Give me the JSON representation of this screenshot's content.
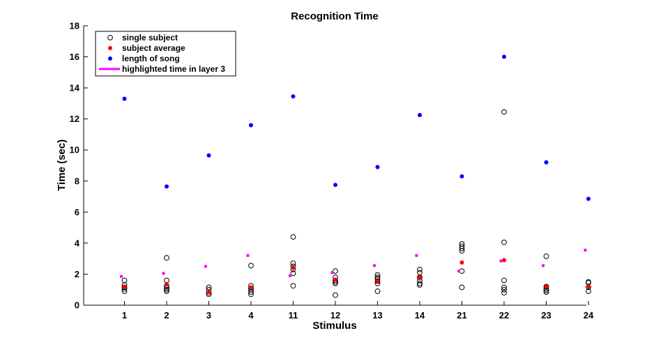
{
  "chart_data": {
    "type": "scatter",
    "title": "Recognition Time",
    "xlabel": "Stimulus",
    "ylabel": "Time (sec)",
    "categories": [
      "1",
      "2",
      "3",
      "4",
      "11",
      "12",
      "13",
      "14",
      "21",
      "22",
      "23",
      "24"
    ],
    "ylim": [
      0,
      18
    ],
    "yticks": [
      0,
      2,
      4,
      6,
      8,
      10,
      12,
      14,
      16,
      18
    ],
    "grid": false,
    "legend_position": "top-left",
    "series": [
      {
        "name": "single subject",
        "marker": "open-circle",
        "color": "#000000",
        "points": [
          {
            "x": "1",
            "y": [
              0.9,
              1.05,
              1.15,
              1.3,
              1.6
            ]
          },
          {
            "x": "2",
            "y": [
              0.9,
              1.0,
              1.1,
              1.25,
              1.6,
              3.05
            ]
          },
          {
            "x": "3",
            "y": [
              0.7,
              0.8,
              1.0,
              1.15
            ]
          },
          {
            "x": "4",
            "y": [
              0.7,
              0.85,
              1.0,
              1.1,
              1.25,
              2.55
            ]
          },
          {
            "x": "11",
            "y": [
              1.25,
              2.05,
              2.3,
              2.5,
              2.7,
              4.4
            ]
          },
          {
            "x": "12",
            "y": [
              0.65,
              1.4,
              1.5,
              1.6,
              1.8,
              2.2
            ]
          },
          {
            "x": "13",
            "y": [
              0.9,
              1.4,
              1.55,
              1.7,
              1.8,
              1.95
            ]
          },
          {
            "x": "14",
            "y": [
              1.3,
              1.4,
              1.6,
              1.8,
              2.1,
              2.3
            ]
          },
          {
            "x": "21",
            "y": [
              1.15,
              2.2,
              3.5,
              3.65,
              3.8,
              3.95
            ]
          },
          {
            "x": "22",
            "y": [
              0.8,
              1.0,
              1.15,
              1.6,
              4.05,
              12.45
            ]
          },
          {
            "x": "23",
            "y": [
              0.85,
              0.95,
              1.05,
              1.2,
              3.15
            ]
          },
          {
            "x": "24",
            "y": [
              0.9,
              1.15,
              1.45,
              1.5
            ]
          }
        ]
      },
      {
        "name": "subject average",
        "marker": "filled-circle",
        "color": "#ff0000",
        "values": [
          1.2,
          1.35,
          0.85,
          1.15,
          2.4,
          1.65,
          1.55,
          1.8,
          2.75,
          2.9,
          1.2,
          1.2
        ]
      },
      {
        "name": "length of song",
        "marker": "filled-circle",
        "color": "#0000ff",
        "values": [
          13.3,
          7.65,
          9.65,
          11.6,
          13.45,
          7.75,
          8.9,
          12.25,
          8.3,
          16.0,
          9.2,
          6.85
        ]
      },
      {
        "name": "highlighted time in layer 3",
        "marker": "square",
        "color": "#ff00ff",
        "values": [
          1.85,
          2.05,
          2.5,
          3.2,
          1.9,
          2.1,
          2.55,
          3.2,
          2.2,
          2.85,
          2.55,
          3.55
        ]
      }
    ]
  }
}
